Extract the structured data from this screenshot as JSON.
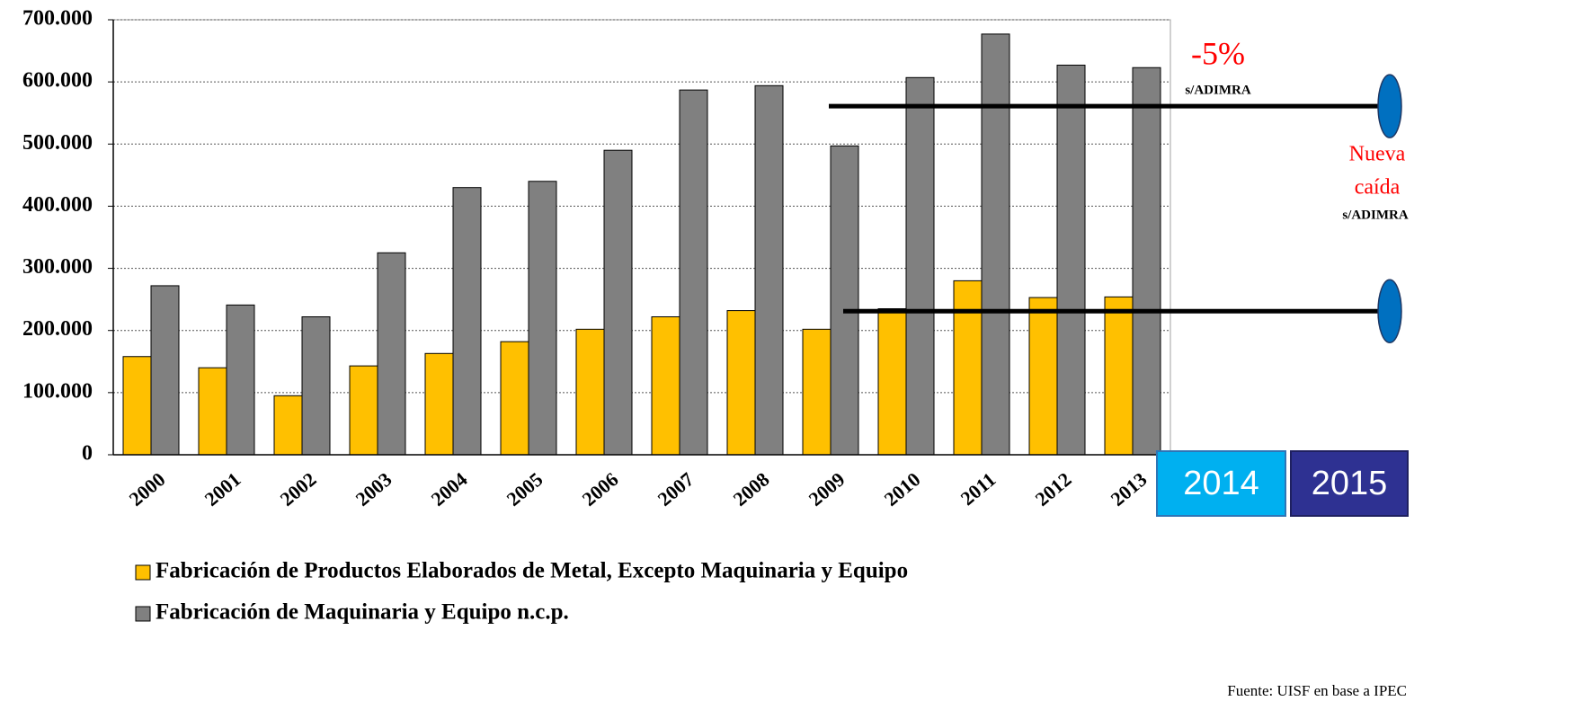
{
  "chart_data": {
    "type": "bar",
    "categories": [
      "2000",
      "2001",
      "2002",
      "2003",
      "2004",
      "2005",
      "2006",
      "2007",
      "2008",
      "2009",
      "2010",
      "2011",
      "2012",
      "2013"
    ],
    "series": [
      {
        "name": "Fabricación de Productos Elaborados de Metal, Excepto Maquinaria y Equipo",
        "color": "#ffc000",
        "values": [
          158000,
          140000,
          95000,
          143000,
          163000,
          182000,
          202000,
          222000,
          232000,
          202000,
          235000,
          280000,
          253000,
          254000
        ]
      },
      {
        "name": "Fabricación de Maquinaria y Equipo n.c.p.",
        "color": "#808080",
        "values": [
          272000,
          241000,
          222000,
          325000,
          430000,
          440000,
          490000,
          587000,
          594000,
          497000,
          607000,
          677000,
          627000,
          623000
        ]
      }
    ],
    "ylim": [
      0,
      700000
    ],
    "yticks": [
      0,
      {
        "value": 100000,
        "label": "100.000"
      },
      {
        "value": 200000,
        "label": "200.000"
      },
      {
        "value": 300000,
        "label": "300.000"
      },
      {
        "value": 400000,
        "label": "400.000"
      },
      {
        "value": 500000,
        "label": "500.000"
      },
      {
        "value": 600000,
        "label": "600.000"
      },
      {
        "value": 700000,
        "label": "700.000"
      }
    ],
    "grid": true,
    "reference_lines": [
      561000,
      231000
    ],
    "extra_years": [
      "2014",
      "2015"
    ],
    "annotation_pct": "-5%",
    "annotation_src": "s/ADIMRA",
    "note_lines": [
      "Nueva",
      "caída"
    ],
    "note_src": "s/ADIMRA",
    "source": "Fuente: UISF en base a IPEC"
  }
}
